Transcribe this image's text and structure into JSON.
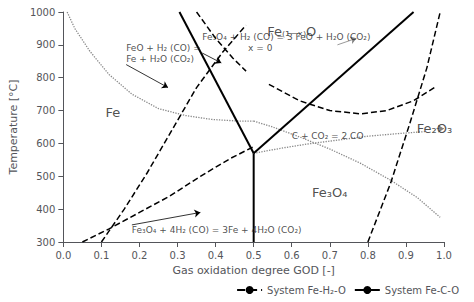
{
  "chart_data": {
    "type": "line",
    "xlabel": "Gas oxidation degree GOD [-]",
    "ylabel": "Temperature [°C]",
    "xlim": [
      0.0,
      1.0
    ],
    "ylim": [
      300,
      1000
    ],
    "xticks": [
      {
        "value": 0.0,
        "label": "0.0"
      },
      0.1,
      0.2,
      0.3,
      0.4,
      0.5,
      0.6,
      0.7,
      0.8,
      0.9,
      {
        "value": 1.0,
        "label": "1.0"
      }
    ],
    "yticks": [
      300,
      400,
      500,
      600,
      700,
      800,
      900,
      1000
    ],
    "grid": false,
    "legend": "lower right",
    "series": [
      {
        "name": "System Fe-C-O",
        "color": "black",
        "line_style": "solid",
        "x": [
          0.305,
          0.5
        ],
        "values": [
          1000,
          570
        ]
      },
      {
        "name": "System Fe-C-O",
        "color": "black",
        "line_style": "solid",
        "x": [
          0.5,
          0.92
        ],
        "values": [
          570,
          1000
        ]
      },
      {
        "name": "System Fe-C-O",
        "color": "black",
        "line_style": "solid",
        "x": [
          0.5,
          0.5
        ],
        "values": [
          300,
          570
        ]
      },
      {
        "name": "System Fe-H₂-O",
        "color": "black",
        "line_style": "dashed",
        "x": [
          0.1,
          0.16,
          0.22,
          0.285,
          0.35,
          0.42,
          0.48
        ],
        "values": [
          300,
          400,
          510,
          640,
          770,
          880,
          960
        ]
      },
      {
        "name": "System Fe-H₂-O",
        "color": "black",
        "line_style": "dashed",
        "x": [
          0.35,
          0.4,
          0.445,
          0.48
        ],
        "values": [
          1000,
          920,
          860,
          820
        ]
      },
      {
        "name": "System Fe-H₂-O",
        "color": "black",
        "line_style": "dashed",
        "x": [
          0.54,
          0.62,
          0.7,
          0.78,
          0.85,
          0.92,
          0.975
        ],
        "values": [
          780,
          730,
          700,
          690,
          700,
          730,
          770
        ]
      },
      {
        "name": "System Fe-H₂-O",
        "color": "black",
        "line_style": "dashed",
        "x": [
          0.8,
          0.86,
          0.91,
          0.955,
          0.99
        ],
        "values": [
          300,
          480,
          660,
          830,
          1000
        ]
      },
      {
        "name": "System Fe-H₂-O",
        "color": "black",
        "line_style": "dashed",
        "x": [
          0.05,
          0.12,
          0.2,
          0.28,
          0.36,
          0.44,
          0.5
        ],
        "values": [
          300,
          340,
          390,
          440,
          500,
          555,
          590
        ]
      },
      {
        "color": "#888888",
        "line_style": "dotted",
        "x": [
          0.01,
          0.03,
          0.07,
          0.12,
          0.18,
          0.25,
          0.32,
          0.39,
          0.46,
          0.5
        ],
        "values": [
          1000,
          950,
          880,
          810,
          750,
          706,
          685,
          673,
          668,
          668
        ]
      },
      {
        "color": "#888888",
        "line_style": "dotted",
        "x": [
          0.5,
          0.55,
          0.62,
          0.7,
          0.78,
          0.86,
          0.93,
          0.99
        ],
        "values": [
          668,
          650,
          620,
          583,
          540,
          488,
          435,
          375
        ]
      },
      {
        "color": "#888888",
        "line_style": "dotted",
        "x": [
          0.5,
          0.57,
          0.64,
          0.72,
          0.8,
          0.88,
          0.95
        ],
        "values": [
          570,
          585,
          598,
          610,
          622,
          630,
          636
        ]
      }
    ],
    "legend_order": [
      "System Fe-H₂-O",
      "System Fe-C-O"
    ],
    "region_labels": [
      {
        "text": "Fe",
        "x": 0.13,
        "y": 695
      },
      {
        "text": "Fe₍₁₋ₓ₎O",
        "x": 0.6,
        "y": 940
      },
      {
        "text": "Fe₃O₄",
        "x": 0.7,
        "y": 450
      },
      {
        "text": "Fe₂O₃",
        "x": 0.975,
        "y": 645
      }
    ],
    "annotations": [
      {
        "text": "FeO + H₂ (CO) =\nFe + H₂O (CO₂)",
        "x": 0.165,
        "y": 840,
        "arrow_x": 0.275,
        "arrow_y": 770
      },
      {
        "text": "Fe₃O₄ + H₂ (CO) = 3 FeO + H₂O (CO₂)\n                x = 0",
        "x": 0.365,
        "y": 875,
        "arrow_x": 0.415,
        "arrow_y": 845
      },
      {
        "x": 0.72,
        "y": 900,
        "arrow_x": 0.77,
        "arrow_y": 920
      },
      {
        "text": "C + CO₂ = 2 CO",
        "x": 0.6,
        "y": 607
      },
      {
        "text": "Fe₃O₄ + 4H₂ (CO) = 3Fe + 4H₂O (CO₂)",
        "x": 0.18,
        "y": 352,
        "arrow_x": 0.36,
        "arrow_y": 390
      },
      {
        "x": 0.98,
        "y": 645,
        "arrow_x": 1.0,
        "arrow_y": 645
      }
    ]
  }
}
